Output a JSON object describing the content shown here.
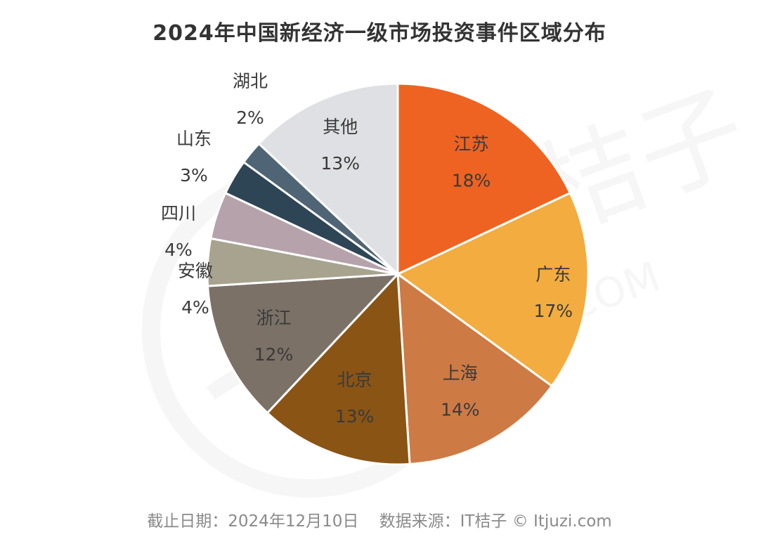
{
  "chart_data": {
    "type": "pie",
    "title": "2024年中国新经济一级市场投资事件区域分布",
    "slices": [
      {
        "label": "江苏",
        "value": 18,
        "display": "18%",
        "color": "#ee6322"
      },
      {
        "label": "广东",
        "value": 17,
        "display": "17%",
        "color": "#f3ac3f"
      },
      {
        "label": "上海",
        "value": 14,
        "display": "14%",
        "color": "#cd7a45"
      },
      {
        "label": "北京",
        "value": 13,
        "display": "13%",
        "color": "#8a5415"
      },
      {
        "label": "浙江",
        "value": 12,
        "display": "12%",
        "color": "#7b7167"
      },
      {
        "label": "安徽",
        "value": 4,
        "display": "4%",
        "color": "#a7a38f"
      },
      {
        "label": "四川",
        "value": 4,
        "display": "4%",
        "color": "#b5a2ab"
      },
      {
        "label": "山东",
        "value": 3,
        "display": "3%",
        "color": "#2e4556"
      },
      {
        "label": "湖北",
        "value": 2,
        "display": "2%",
        "color": "#4f6575"
      },
      {
        "label": "其他",
        "value": 13,
        "display": "13%",
        "color": "#dfe0e3"
      }
    ],
    "start": "12 o'clock",
    "direction": "clockwise"
  },
  "footer": {
    "text": "截止日期：2024年12月10日    数据来源：IT桔子 © Itjuzi.com"
  },
  "watermark": {
    "text": "IT桔子 ITJUZI.COM"
  }
}
